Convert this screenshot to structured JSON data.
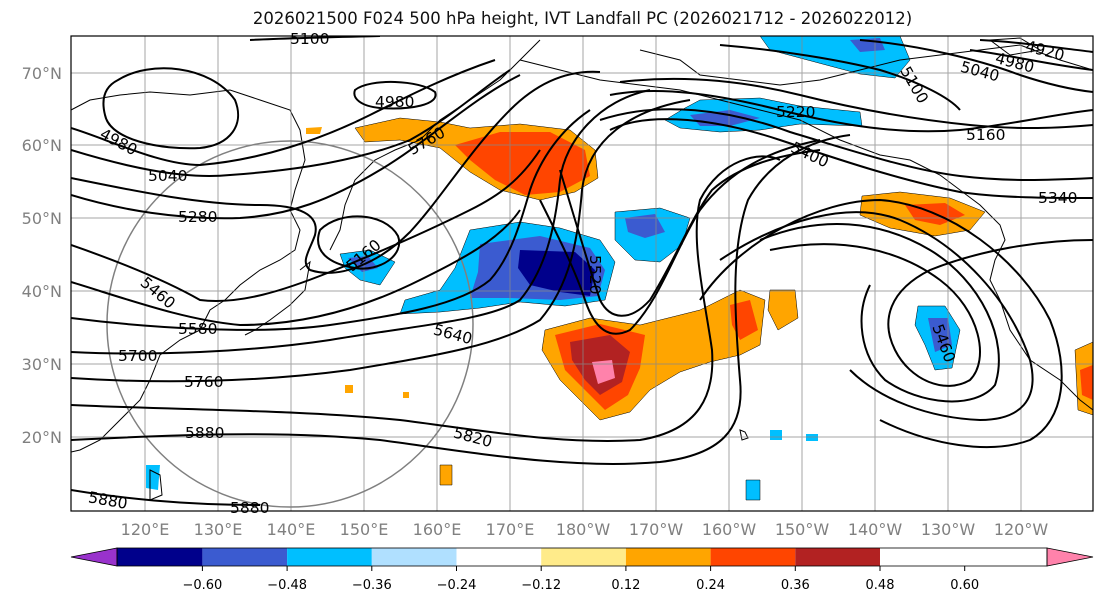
{
  "title": "2026021500 F024 500 hPa height, IVT Landfall PC (2026021712 - 2026022012)",
  "latitude_labels": [
    "70°N",
    "60°N",
    "50°N",
    "40°N",
    "30°N",
    "20°N"
  ],
  "longitude_labels": [
    "120°E",
    "130°E",
    "140°E",
    "150°E",
    "160°E",
    "170°E",
    "180°W",
    "170°W",
    "160°W",
    "150°W",
    "140°W",
    "130°W",
    "120°W"
  ],
  "contour_labels": [
    "5100",
    "4980",
    "5760",
    "4980",
    "5040",
    "5280",
    "5160",
    "5460",
    "5580",
    "5700",
    "5760",
    "5880",
    "5880",
    "5880",
    "5640",
    "5820",
    "5520",
    "5220",
    "5400",
    "5100",
    "5040",
    "4920",
    "4980",
    "5160",
    "5340",
    "5460"
  ],
  "colorbar": {
    "colors": [
      "#9932cc",
      "#00008b",
      "#3b5bd0",
      "#00bfff",
      "#b0e0ff",
      "#ffffff",
      "#ffeb8a",
      "#ffa500",
      "#ff4500",
      "#b22222",
      "#ff82ab"
    ],
    "tick_labels": [
      "−0.60",
      "−0.48",
      "−0.36",
      "−0.24",
      "−0.12",
      "0.12",
      "0.24",
      "0.36",
      "0.48",
      "0.60"
    ]
  }
}
